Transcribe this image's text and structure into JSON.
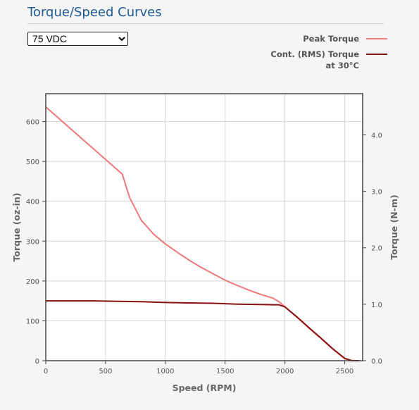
{
  "header": {
    "title": "Torque/Speed Curves"
  },
  "voltage_select": {
    "value": "75 VDC",
    "options": [
      "75 VDC"
    ]
  },
  "colors": {
    "peak": "#f07878",
    "continuous": "#8b1010",
    "axis": "#444444",
    "grid": "#d4d4d4"
  },
  "chart_data": {
    "type": "line",
    "xlabel": "Speed (RPM)",
    "ylabel": "Torque (oz-in)",
    "y2label": "Torque (N-m)",
    "xlim": [
      0,
      2650
    ],
    "ylim": [
      0,
      670
    ],
    "y2lim": [
      0,
      4.73
    ],
    "xticks": [
      0,
      500,
      1000,
      1500,
      2000,
      2500
    ],
    "yticks": [
      0,
      100,
      200,
      300,
      400,
      500,
      600
    ],
    "y2ticks": [
      "0.0",
      "1.0",
      "2.0",
      "3.0",
      "4.0"
    ],
    "y2tick_values": [
      0,
      1,
      2,
      3,
      4
    ],
    "grid": true,
    "legend": "top-right",
    "series": [
      {
        "name": "Peak Torque",
        "color": "#f07878",
        "points": [
          [
            0,
            637
          ],
          [
            640,
            468
          ],
          [
            700,
            410
          ],
          [
            800,
            352
          ],
          [
            900,
            318
          ],
          [
            1000,
            293
          ],
          [
            1100,
            272
          ],
          [
            1200,
            252
          ],
          [
            1300,
            234
          ],
          [
            1400,
            218
          ],
          [
            1500,
            202
          ],
          [
            1600,
            189
          ],
          [
            1700,
            177
          ],
          [
            1800,
            166
          ],
          [
            1900,
            157
          ],
          [
            1950,
            148
          ],
          [
            2000,
            135
          ],
          [
            2100,
            109
          ],
          [
            2200,
            82
          ],
          [
            2300,
            56
          ],
          [
            2400,
            29
          ],
          [
            2500,
            5
          ],
          [
            2560,
            0
          ],
          [
            2620,
            0
          ]
        ]
      },
      {
        "name": "Cont. (RMS) Torque at 30°C",
        "name_lines": [
          "Cont. (RMS) Torque",
          "at 30°C"
        ],
        "color": "#8b1010",
        "points": [
          [
            0,
            150
          ],
          [
            200,
            150
          ],
          [
            400,
            150
          ],
          [
            600,
            149
          ],
          [
            800,
            148
          ],
          [
            1000,
            146
          ],
          [
            1200,
            145
          ],
          [
            1400,
            144
          ],
          [
            1600,
            142
          ],
          [
            1800,
            141
          ],
          [
            1950,
            140
          ],
          [
            2000,
            135
          ],
          [
            2100,
            110
          ],
          [
            2200,
            83
          ],
          [
            2300,
            57
          ],
          [
            2400,
            30
          ],
          [
            2500,
            6
          ],
          [
            2560,
            0
          ],
          [
            2620,
            0
          ]
        ]
      }
    ]
  }
}
